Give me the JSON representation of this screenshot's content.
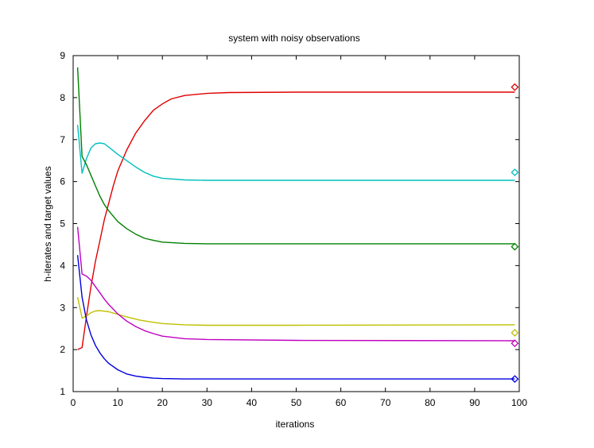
{
  "chart_data": {
    "type": "line",
    "title": "system with noisy observations",
    "xlabel": "iterations",
    "ylabel": "h-iterates and target values",
    "xlim": [
      0,
      100
    ],
    "ylim": [
      1,
      9
    ],
    "xticks": [
      "0",
      "10",
      "20",
      "30",
      "40",
      "50",
      "60",
      "70",
      "80",
      "90",
      "100"
    ],
    "yticks": [
      "1",
      "2",
      "3",
      "4",
      "5",
      "6",
      "7",
      "8",
      "9"
    ],
    "grid": false,
    "series": [
      {
        "color": "#e00000",
        "points": [
          [
            1,
            2.0
          ],
          [
            2,
            2.05
          ],
          [
            3,
            2.8
          ],
          [
            4,
            3.5
          ],
          [
            5,
            4.1
          ],
          [
            6,
            4.6
          ],
          [
            7,
            5.1
          ],
          [
            8,
            5.5
          ],
          [
            9,
            5.9
          ],
          [
            10,
            6.25
          ],
          [
            12,
            6.75
          ],
          [
            14,
            7.15
          ],
          [
            16,
            7.45
          ],
          [
            18,
            7.7
          ],
          [
            20,
            7.85
          ],
          [
            22,
            7.97
          ],
          [
            25,
            8.05
          ],
          [
            30,
            8.1
          ],
          [
            35,
            8.12
          ],
          [
            50,
            8.13
          ],
          [
            99,
            8.13
          ]
        ],
        "target": 8.25
      },
      {
        "color": "#00c0c0",
        "points": [
          [
            1,
            7.35
          ],
          [
            2,
            6.2
          ],
          [
            3,
            6.55
          ],
          [
            4,
            6.8
          ],
          [
            5,
            6.9
          ],
          [
            6,
            6.92
          ],
          [
            7,
            6.9
          ],
          [
            8,
            6.82
          ],
          [
            10,
            6.65
          ],
          [
            12,
            6.5
          ],
          [
            14,
            6.35
          ],
          [
            16,
            6.22
          ],
          [
            18,
            6.13
          ],
          [
            20,
            6.08
          ],
          [
            25,
            6.04
          ],
          [
            30,
            6.03
          ],
          [
            50,
            6.03
          ],
          [
            99,
            6.03
          ]
        ],
        "target": 6.22
      },
      {
        "color": "#008000",
        "points": [
          [
            1,
            8.72
          ],
          [
            2,
            6.6
          ],
          [
            3,
            6.4
          ],
          [
            4,
            6.15
          ],
          [
            5,
            5.9
          ],
          [
            6,
            5.65
          ],
          [
            7,
            5.45
          ],
          [
            8,
            5.3
          ],
          [
            10,
            5.05
          ],
          [
            12,
            4.88
          ],
          [
            14,
            4.75
          ],
          [
            16,
            4.65
          ],
          [
            18,
            4.6
          ],
          [
            20,
            4.56
          ],
          [
            25,
            4.53
          ],
          [
            30,
            4.52
          ],
          [
            50,
            4.52
          ],
          [
            99,
            4.52
          ]
        ],
        "target": 4.45
      },
      {
        "color": "#c0c000",
        "points": [
          [
            1,
            3.25
          ],
          [
            2,
            2.75
          ],
          [
            3,
            2.8
          ],
          [
            4,
            2.88
          ],
          [
            5,
            2.92
          ],
          [
            6,
            2.93
          ],
          [
            8,
            2.9
          ],
          [
            10,
            2.84
          ],
          [
            12,
            2.78
          ],
          [
            15,
            2.7
          ],
          [
            18,
            2.65
          ],
          [
            20,
            2.62
          ],
          [
            25,
            2.59
          ],
          [
            30,
            2.58
          ],
          [
            50,
            2.58
          ],
          [
            99,
            2.59
          ]
        ],
        "target": 2.4
      },
      {
        "color": "#c000c0",
        "points": [
          [
            1,
            4.92
          ],
          [
            2,
            3.8
          ],
          [
            3,
            3.75
          ],
          [
            4,
            3.65
          ],
          [
            5,
            3.5
          ],
          [
            6,
            3.35
          ],
          [
            7,
            3.2
          ],
          [
            8,
            3.07
          ],
          [
            10,
            2.85
          ],
          [
            12,
            2.68
          ],
          [
            14,
            2.55
          ],
          [
            16,
            2.45
          ],
          [
            18,
            2.38
          ],
          [
            20,
            2.32
          ],
          [
            25,
            2.26
          ],
          [
            30,
            2.24
          ],
          [
            50,
            2.22
          ],
          [
            99,
            2.21
          ]
        ],
        "target": 2.15
      },
      {
        "color": "#0000e0",
        "points": [
          [
            1,
            4.25
          ],
          [
            2,
            3.25
          ],
          [
            3,
            2.7
          ],
          [
            4,
            2.35
          ],
          [
            5,
            2.1
          ],
          [
            6,
            1.92
          ],
          [
            7,
            1.78
          ],
          [
            8,
            1.67
          ],
          [
            10,
            1.52
          ],
          [
            12,
            1.42
          ],
          [
            14,
            1.37
          ],
          [
            16,
            1.34
          ],
          [
            18,
            1.32
          ],
          [
            20,
            1.31
          ],
          [
            25,
            1.3
          ],
          [
            50,
            1.3
          ],
          [
            99,
            1.3
          ]
        ],
        "target": 1.3
      }
    ],
    "target_x": 99
  }
}
